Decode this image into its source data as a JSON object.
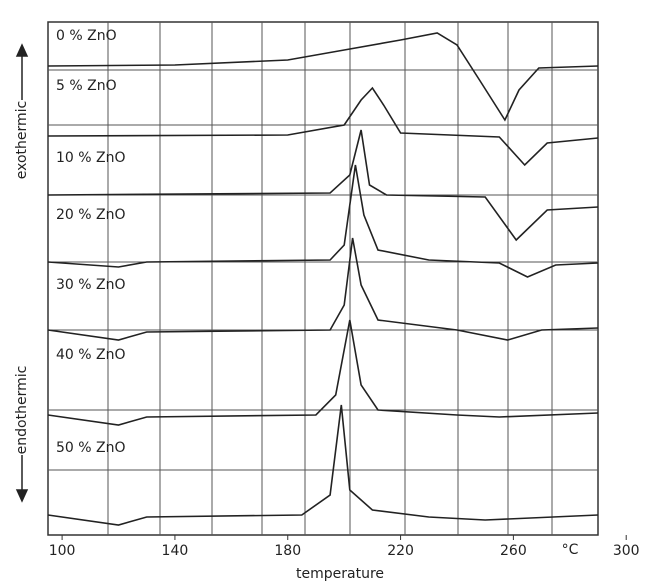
{
  "chart_data": {
    "type": "line",
    "x_label": "temperature",
    "x_unit": "°C",
    "y_label_top": "exothermic",
    "y_label_bottom": "endothermic",
    "xlim": [
      95,
      290
    ],
    "xticks": [
      100,
      140,
      180,
      220,
      260,
      300
    ],
    "color": "#222222",
    "series": [
      {
        "name": "0 % ZnO",
        "x": [
          95,
          140,
          180,
          200,
          220,
          233,
          240,
          248,
          257,
          262,
          269,
          290
        ],
        "values": [
          469,
          470,
          475,
          485,
          495,
          502,
          490,
          455,
          415,
          445,
          467,
          469
        ]
      },
      {
        "name": "5 % ZnO",
        "x": [
          95,
          180,
          200,
          206,
          210,
          214,
          220,
          255,
          264,
          272,
          290
        ],
        "values": [
          399,
          400,
          410,
          435,
          447,
          430,
          402,
          398,
          370,
          392,
          397
        ]
      },
      {
        "name": "10 % ZnO",
        "x": [
          95,
          195,
          202,
          206,
          209,
          215,
          250,
          261,
          272,
          290
        ],
        "values": [
          340,
          342,
          360,
          405,
          350,
          340,
          338,
          295,
          325,
          328
        ]
      },
      {
        "name": "20 % ZnO",
        "x": [
          95,
          120,
          130,
          195,
          200,
          204,
          207,
          212,
          230,
          255,
          265,
          275,
          290
        ],
        "values": [
          273,
          268,
          273,
          275,
          290,
          370,
          320,
          285,
          275,
          272,
          258,
          270,
          272
        ]
      },
      {
        "name": "30 % ZnO",
        "x": [
          95,
          120,
          130,
          195,
          200,
          203,
          206,
          212,
          240,
          258,
          270,
          290
        ],
        "values": [
          205,
          195,
          203,
          205,
          230,
          297,
          250,
          215,
          205,
          195,
          205,
          207
        ]
      },
      {
        "name": "40 % ZnO",
        "x": [
          95,
          120,
          130,
          190,
          197,
          202,
          206,
          212,
          240,
          255,
          290
        ],
        "values": [
          120,
          110,
          118,
          120,
          140,
          215,
          150,
          125,
          120,
          118,
          122
        ]
      },
      {
        "name": "50 % ZnO",
        "x": [
          95,
          120,
          130,
          185,
          195,
          199,
          202,
          210,
          230,
          250,
          290
        ],
        "values": [
          20,
          10,
          18,
          20,
          40,
          130,
          45,
          25,
          18,
          15,
          20
        ]
      }
    ]
  }
}
